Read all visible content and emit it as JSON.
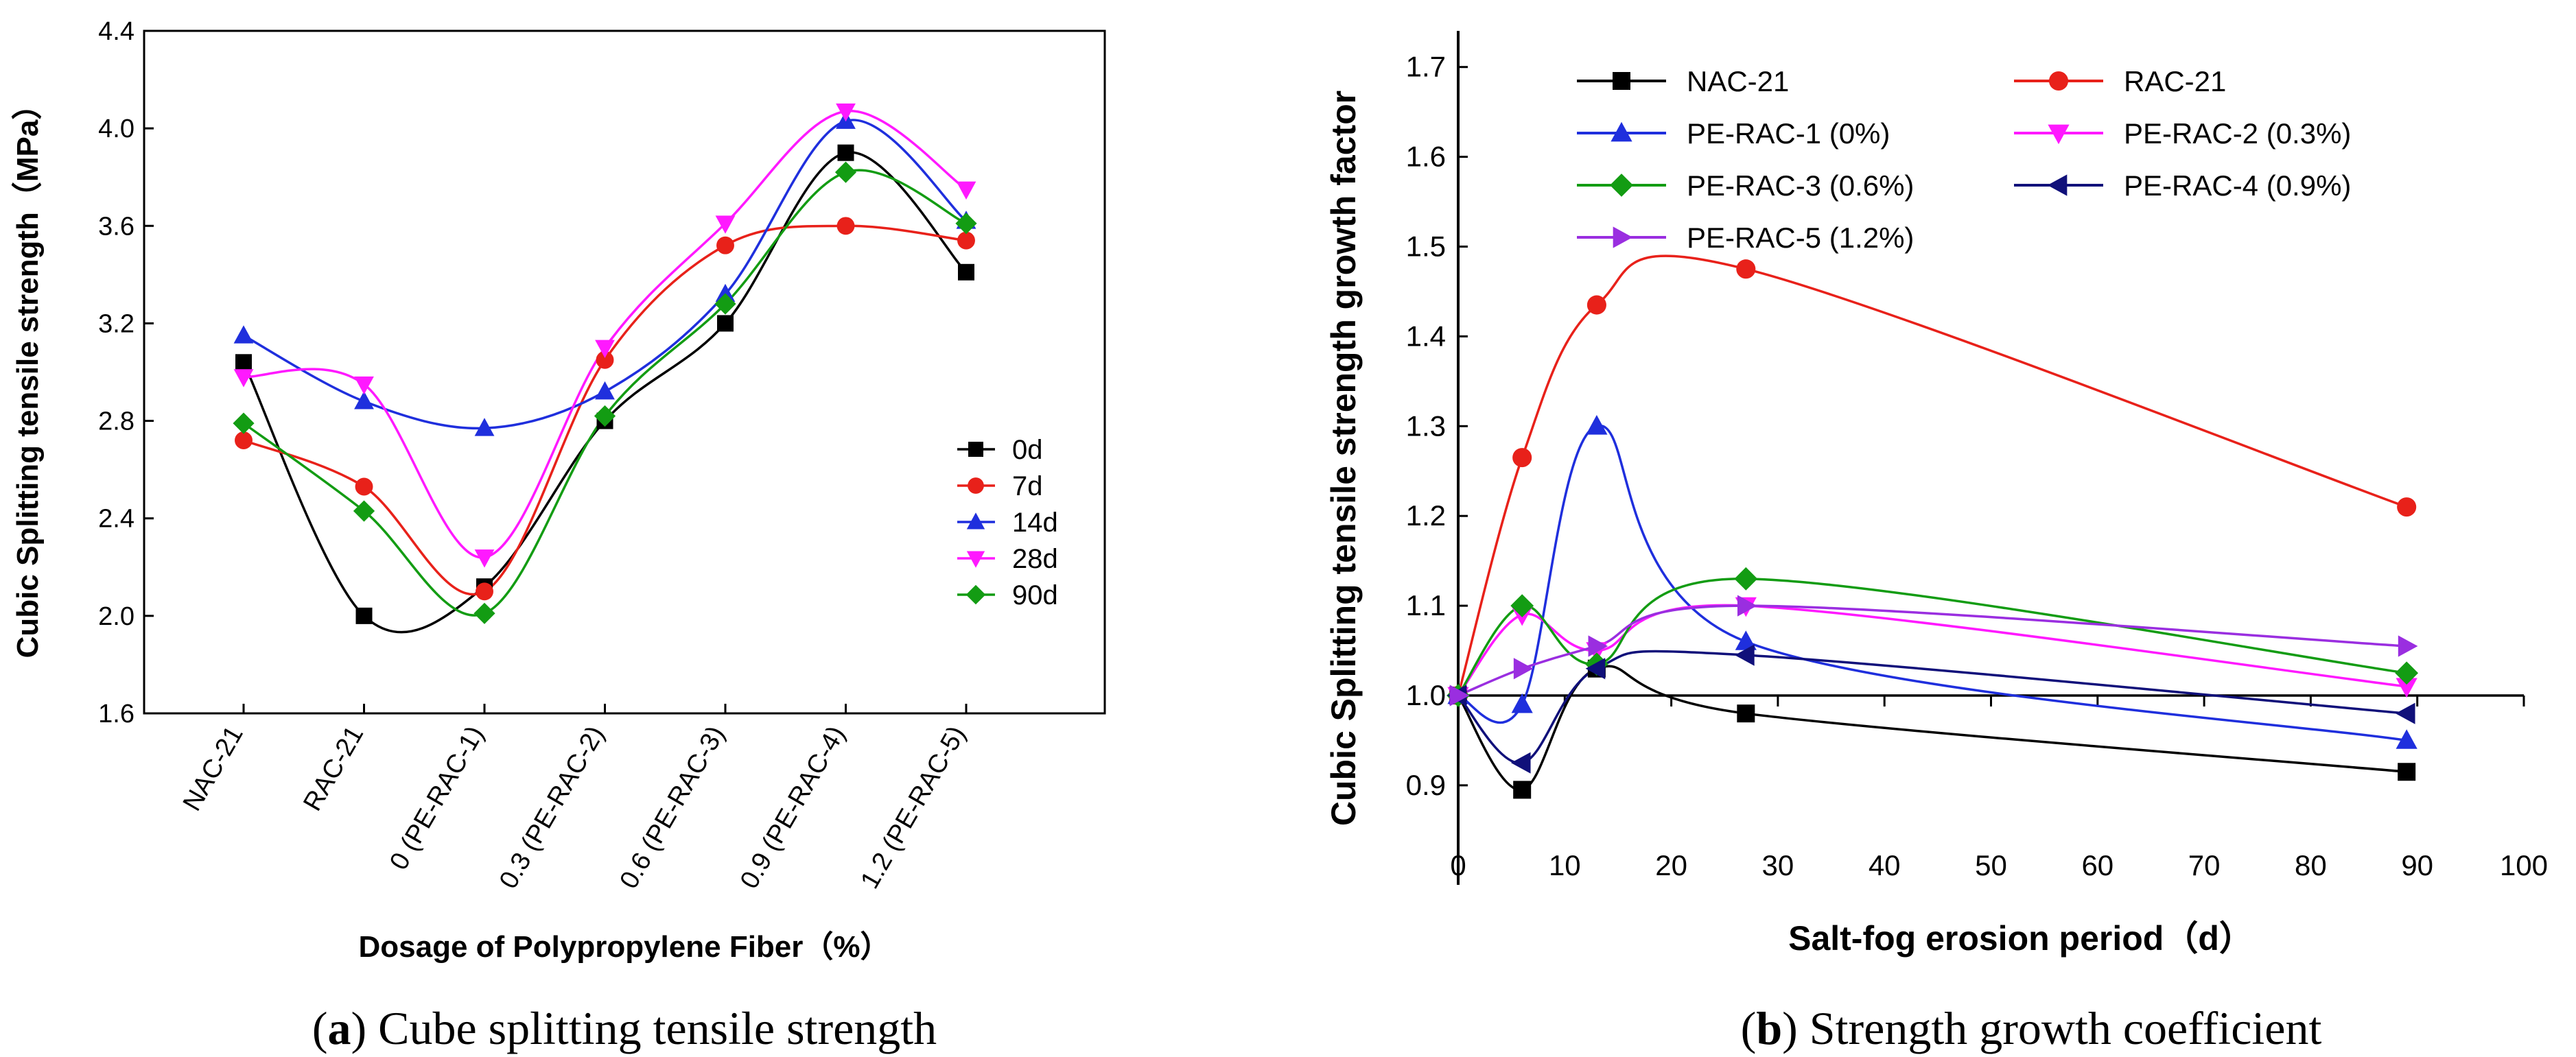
{
  "chart_data": [
    {
      "type": "line",
      "panel": "a",
      "caption_label": "a",
      "caption_text": "Cube splitting tensile strength",
      "title": "",
      "xlabel": "Dosage of Polypropylene Fiber（%）",
      "ylabel": "Cubic Splitting tensile strength（MPa）",
      "ylim": [
        1.6,
        4.4
      ],
      "yticks": [
        "1.6",
        "2.0",
        "2.4",
        "2.8",
        "3.2",
        "3.6",
        "4.0",
        "4.4"
      ],
      "categories": [
        "NAC-21",
        "RAC-21",
        "0 (PE-RAC-1)",
        "0.3 (PE-RAC-2)",
        "0.6 (PE-RAC-3)",
        "0.9 (PE-RAC-4)",
        "1.2 (PE-RAC-5)"
      ],
      "legend_position": "right-middle",
      "series": [
        {
          "name": "0d",
          "color": "#000000",
          "marker": "square",
          "values": [
            3.04,
            2.0,
            2.12,
            2.8,
            3.2,
            3.9,
            3.41
          ]
        },
        {
          "name": "7d",
          "color": "#e8211a",
          "marker": "circle",
          "values": [
            2.72,
            2.53,
            2.1,
            3.05,
            3.52,
            3.6,
            3.54
          ]
        },
        {
          "name": "14d",
          "color": "#1f2fdd",
          "marker": "triangle-up",
          "values": [
            3.15,
            2.88,
            2.77,
            2.92,
            3.32,
            4.03,
            3.62
          ]
        },
        {
          "name": "28d",
          "color": "#ff19ff",
          "marker": "triangle-down",
          "values": [
            2.98,
            2.95,
            2.24,
            3.1,
            3.61,
            4.07,
            3.75
          ]
        },
        {
          "name": "90d",
          "color": "#139c13",
          "marker": "diamond",
          "values": [
            2.79,
            2.43,
            2.01,
            2.82,
            3.28,
            3.82,
            3.61
          ]
        }
      ]
    },
    {
      "type": "line",
      "panel": "b",
      "caption_label": "b",
      "caption_text": "Strength growth coefficient",
      "title": "",
      "xlabel": "Salt-fog erosion period（d）",
      "ylabel": "Cubic Splitting tensile strength growth factor",
      "xlim": [
        0,
        100
      ],
      "ylim": [
        0.85,
        1.7
      ],
      "xticks": [
        "0",
        "10",
        "20",
        "30",
        "40",
        "50",
        "60",
        "70",
        "80",
        "90",
        "100"
      ],
      "yticks": [
        "0.9",
        "1.0",
        "1.1",
        "1.2",
        "1.3",
        "1.4",
        "1.5",
        "1.6",
        "1.7"
      ],
      "x": [
        0,
        6,
        13,
        27,
        89
      ],
      "legend_position": "top",
      "series": [
        {
          "name": "NAC-21",
          "color": "#000000",
          "marker": "square",
          "values": [
            1.0,
            0.895,
            1.03,
            0.98,
            0.915
          ]
        },
        {
          "name": "RAC-21",
          "color": "#e8211a",
          "marker": "circle",
          "values": [
            1.0,
            1.265,
            1.435,
            1.475,
            1.21
          ]
        },
        {
          "name": "PE-RAC-1 (0%)",
          "color": "#1f2fdd",
          "marker": "triangle-up",
          "values": [
            1.0,
            0.99,
            1.3,
            1.06,
            0.95
          ]
        },
        {
          "name": "PE-RAC-2 (0.3%)",
          "color": "#ff19ff",
          "marker": "triangle-down",
          "values": [
            1.0,
            1.09,
            1.05,
            1.1,
            1.01
          ]
        },
        {
          "name": "PE-RAC-3 (0.6%)",
          "color": "#139c13",
          "marker": "diamond",
          "values": [
            1.0,
            1.1,
            1.035,
            1.13,
            1.025
          ]
        },
        {
          "name": "PE-RAC-4 (0.9%)",
          "color": "#10107a",
          "marker": "triangle-left",
          "values": [
            1.0,
            0.925,
            1.03,
            1.045,
            0.98
          ]
        },
        {
          "name": "PE-RAC-5 (1.2%)",
          "color": "#9a2ee0",
          "marker": "triangle-right",
          "values": [
            1.0,
            1.03,
            1.055,
            1.1,
            1.055
          ]
        }
      ]
    }
  ]
}
